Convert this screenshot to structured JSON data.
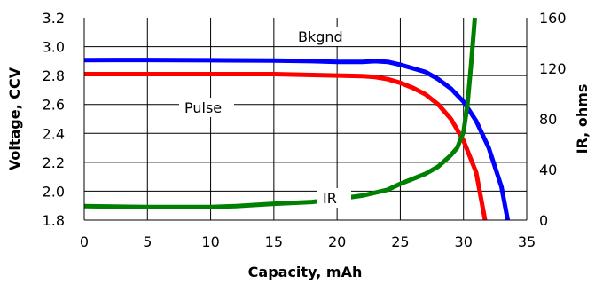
{
  "chart_data": {
    "type": "line",
    "title": "",
    "xlabel": "Capacity, mAh",
    "ylabel": "Voltage, CCV",
    "y2label": "IR, ohms",
    "xlim": [
      0,
      35
    ],
    "ylim": [
      1.8,
      3.2
    ],
    "y2lim": [
      0,
      160
    ],
    "x_ticks": [
      "0",
      "5",
      "10",
      "15",
      "20",
      "25",
      "30",
      "35"
    ],
    "y_ticks": [
      "1.8",
      "2.0",
      "2.2",
      "2.4",
      "2.6",
      "2.8",
      "3.0",
      "3.2"
    ],
    "y2_ticks": [
      "0",
      "40",
      "80",
      "120",
      "160"
    ],
    "grid": true,
    "legend": "none",
    "series": [
      {
        "name": "Bkgnd",
        "axis": "left",
        "color": "#0000ff",
        "points": [
          [
            0,
            2.907
          ],
          [
            5,
            2.908
          ],
          [
            10,
            2.906
          ],
          [
            15,
            2.904
          ],
          [
            18,
            2.9
          ],
          [
            20,
            2.895
          ],
          [
            22,
            2.895
          ],
          [
            23,
            2.9
          ],
          [
            24,
            2.895
          ],
          [
            25,
            2.875
          ],
          [
            26,
            2.85
          ],
          [
            27,
            2.825
          ],
          [
            28,
            2.775
          ],
          [
            29,
            2.71
          ],
          [
            30,
            2.62
          ],
          [
            31,
            2.485
          ],
          [
            32,
            2.3
          ],
          [
            33,
            2.03
          ],
          [
            33.5,
            1.8
          ]
        ]
      },
      {
        "name": "Pulse",
        "axis": "left",
        "color": "#ff0000",
        "points": [
          [
            0,
            2.81
          ],
          [
            5,
            2.81
          ],
          [
            10,
            2.81
          ],
          [
            15,
            2.81
          ],
          [
            20,
            2.8
          ],
          [
            22,
            2.796
          ],
          [
            23,
            2.79
          ],
          [
            24,
            2.775
          ],
          [
            25,
            2.75
          ],
          [
            26,
            2.715
          ],
          [
            27,
            2.67
          ],
          [
            28,
            2.6
          ],
          [
            29,
            2.5
          ],
          [
            30,
            2.35
          ],
          [
            31,
            2.13
          ],
          [
            31.7,
            1.8
          ]
        ]
      },
      {
        "name": "IR",
        "axis": "right",
        "color": "#008000",
        "points": [
          [
            0,
            11.1
          ],
          [
            5,
            10.3
          ],
          [
            10,
            10.3
          ],
          [
            12,
            11.1
          ],
          [
            15,
            12.9
          ],
          [
            18,
            14.3
          ],
          [
            20,
            16.6
          ],
          [
            22,
            19.4
          ],
          [
            24,
            24.0
          ],
          [
            25,
            28.6
          ],
          [
            26,
            32.6
          ],
          [
            27,
            36.6
          ],
          [
            28,
            42.3
          ],
          [
            29,
            51.4
          ],
          [
            29.5,
            57.1
          ],
          [
            30,
            69.7
          ],
          [
            30.3,
            90.3
          ],
          [
            30.6,
            123.4
          ],
          [
            30.9,
            160
          ]
        ]
      }
    ],
    "annotations": [
      "Bkgnd",
      "Pulse",
      "IR"
    ]
  }
}
